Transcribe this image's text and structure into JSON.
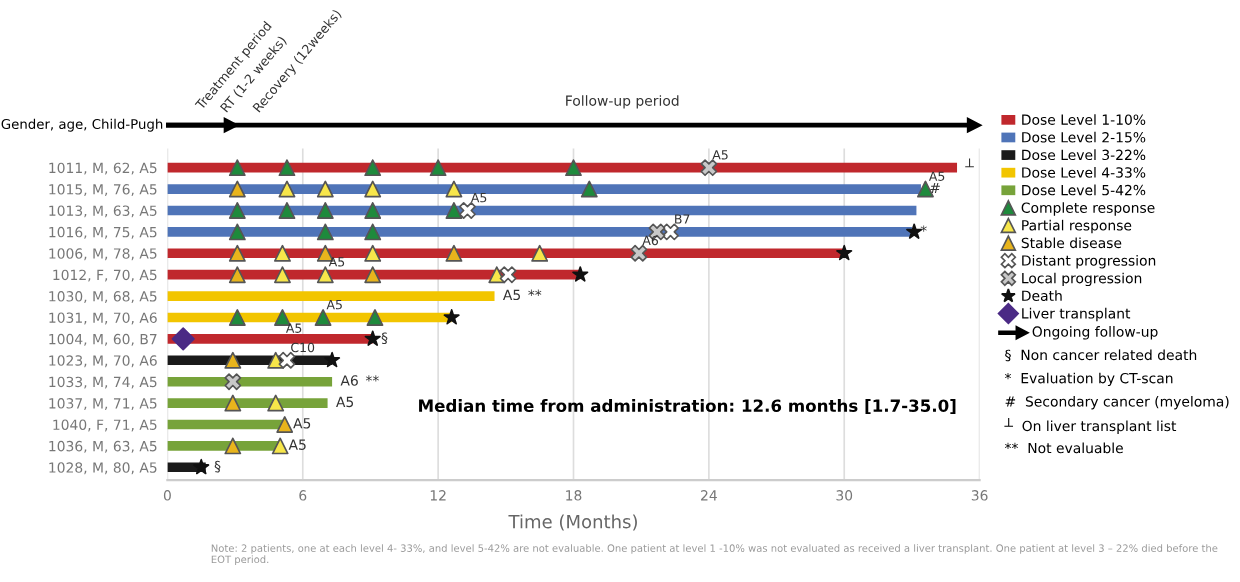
{
  "chart_data": {
    "type": "bar",
    "orientation": "horizontal",
    "xlabel": "Time (Months)",
    "categories": [
      "1011, M, 62, A5",
      "1015, M, 76, A5",
      "1013, M, 63, A5",
      "1016, M, 75, A5",
      "1006, M, 78, A5",
      "1012, F, 70, A5",
      "1030, M, 68, A5",
      "1031, M, 70, A6",
      "1004, M, 60, B7",
      "1023, M, 70, A6",
      "1033, M, 74, A5",
      "1037, M, 71, A5",
      "1040, F, 71, A5",
      "1036, M, 63, A5",
      "1028, M, 80, A5"
    ],
    "xlim": [
      0,
      36
    ],
    "xticks": [
      0,
      6,
      12,
      18,
      24,
      30,
      36
    ],
    "grid": "x",
    "legend": "right",
    "series": [
      {
        "name": "Dose Level 1-10%",
        "color": "#c0282d",
        "values": [
          35.0,
          null,
          null,
          null,
          30.0,
          18.3,
          null,
          null,
          9.1,
          null,
          null,
          null,
          null,
          null,
          null
        ]
      },
      {
        "name": "Dose Level 2-15%",
        "color": "#4f74b8",
        "values": [
          null,
          33.4,
          33.2,
          33.0,
          null,
          null,
          null,
          null,
          null,
          null,
          null,
          null,
          null,
          null,
          null
        ]
      },
      {
        "name": "Dose Level 3-22%",
        "color": "#1a1a1a",
        "values": [
          null,
          null,
          null,
          null,
          null,
          null,
          null,
          null,
          null,
          7.3,
          null,
          null,
          null,
          null,
          1.7
        ]
      },
      {
        "name": "Dose Level 4-33%",
        "color": "#f2c500",
        "values": [
          null,
          null,
          null,
          null,
          null,
          null,
          14.5,
          12.6,
          null,
          null,
          null,
          null,
          null,
          null,
          null
        ]
      },
      {
        "name": "Dose Level 5-42%",
        "color": "#77a33a",
        "values": [
          null,
          null,
          null,
          null,
          null,
          null,
          null,
          null,
          null,
          null,
          7.3,
          7.1,
          5.2,
          5.0,
          null
        ]
      },
      {
        "name": "Complete response",
        "type": "scatter",
        "marker": "triangle",
        "color": "#1e8a3c",
        "x": [
          "1011, M, 62, A5",
          "1011, M, 62, A5",
          "1011, M, 62, A5",
          "1011, M, 62, A5",
          "1011, M, 62, A5",
          "1015, M, 76, A5",
          "1015, M, 76, A5",
          "1013, M, 63, A5",
          "1013, M, 63, A5",
          "1013, M, 63, A5",
          "1013, M, 63, A5",
          "1013, M, 63, A5",
          "1016, M, 75, A5",
          "1016, M, 75, A5",
          "1016, M, 75, A5",
          "1031, M, 70, A6",
          "1031, M, 70, A6",
          "1031, M, 70, A6",
          "1031, M, 70, A6"
        ],
        "values": [
          3.1,
          5.3,
          9.1,
          12.0,
          18.0,
          18.7,
          33.6,
          3.1,
          5.3,
          7.0,
          9.1,
          12.7,
          3.1,
          7.0,
          9.1,
          3.1,
          5.1,
          6.9,
          9.2
        ]
      },
      {
        "name": "Partial response",
        "type": "scatter",
        "marker": "triangle",
        "color": "#f7e64a",
        "x": [
          "1015, M, 76, A5",
          "1015, M, 76, A5",
          "1015, M, 76, A5",
          "1015, M, 76, A5",
          "1006, M, 78, A5",
          "1006, M, 78, A5",
          "1006, M, 78, A5",
          "1012, F, 70, A5",
          "1012, F, 70, A5",
          "1012, F, 70, A5",
          "1023, M, 70, A6",
          "1037, M, 71, A5",
          "1036, M, 63, A5"
        ],
        "values": [
          5.3,
          7.0,
          9.1,
          12.7,
          5.1,
          9.1,
          16.5,
          5.1,
          7.0,
          14.6,
          4.8,
          4.8,
          5.0
        ]
      },
      {
        "name": "Stable disease",
        "type": "scatter",
        "marker": "triangle",
        "color": "#e8b41c",
        "x": [
          "1015, M, 76, A5",
          "1006, M, 78, A5",
          "1006, M, 78, A5",
          "1006, M, 78, A5",
          "1012, F, 70, A5",
          "1012, F, 70, A5",
          "1023, M, 70, A6",
          "1037, M, 71, A5",
          "1040, F, 71, A5",
          "1036, M, 63, A5"
        ],
        "values": [
          3.1,
          3.1,
          7.0,
          12.7,
          3.1,
          9.1,
          2.9,
          2.9,
          5.2,
          2.9
        ]
      },
      {
        "name": "Distant progression",
        "type": "scatter",
        "marker": "cross",
        "color": "#ffffff",
        "x": [
          "1013, M, 63, A5",
          "1016, M, 75, A5",
          "1012, F, 70, A5",
          "1023, M, 70, A6"
        ],
        "values": [
          13.3,
          22.3,
          15.1,
          5.3
        ]
      },
      {
        "name": "Local progression",
        "type": "scatter",
        "marker": "cross",
        "color": "#c8c8c8",
        "x": [
          "1011, M, 62, A5",
          "1016, M, 75, A5",
          "1006, M, 78, A5",
          "1033, M, 74, A5"
        ],
        "values": [
          24.0,
          21.7,
          20.9,
          2.9
        ]
      },
      {
        "name": "Death",
        "type": "scatter",
        "marker": "star",
        "color": "#111111",
        "x": [
          "1016, M, 75, A5",
          "1006, M, 78, A5",
          "1012, F, 70, A5",
          "1031, M, 70, A6",
          "1004, M, 60, B7",
          "1023, M, 70, A6",
          "1028, M, 80, A5"
        ],
        "values": [
          33.1,
          30.0,
          18.3,
          12.6,
          9.1,
          7.3,
          1.5
        ]
      },
      {
        "name": "Liver transplant",
        "type": "scatter",
        "marker": "diamond",
        "color": "#4b2a85",
        "x": [
          "1004, M, 60, B7"
        ],
        "values": [
          0.7
        ]
      }
    ],
    "annotations": [
      "Gender, age, Child-Pugh",
      "Treatment period",
      "RT (1-2 weeks)",
      "Recovery (12weeks)",
      "Follow-up period",
      "Median time from administration: 12.6 months [1.7-35.0]",
      "Note: 2 patients, one at each level 4- 33%, and level 5-42% are not evaluable. One patient at level 1 -10% was not evaluated as received a liver transplant. One patient at level 3 – 22% died before the EOT period.",
      "Ongoing follow-up",
      "§  Non cancer related death",
      "*  Evaluation by CT-scan",
      "#  Secondary cancer (myeloma)",
      "┴  On liver transplant list",
      "**  Not evaluable",
      {
        "text": "A5",
        "x": 24.0,
        "y": "1011, M, 62, A5"
      },
      {
        "text": "┴",
        "x": 35.0,
        "y": "1011, M, 62, A5"
      },
      {
        "text": "A5",
        "x": 33.6,
        "y": "1015, M, 76, A5"
      },
      {
        "text": "#",
        "x": 33.4,
        "y": "1015, M, 76, A5"
      },
      {
        "text": "A5",
        "x": 13.3,
        "y": "1013, M, 63, A5"
      },
      {
        "text": "B7",
        "x": 22.3,
        "y": "1016, M, 75, A5"
      },
      {
        "text": "*",
        "x": 33.0,
        "y": "1016, M, 75, A5"
      },
      {
        "text": "A6",
        "x": 20.9,
        "y": "1006, M, 78, A5"
      },
      {
        "text": "A5",
        "x": 7.0,
        "y": "1012, F, 70, A5"
      },
      {
        "text": "A5",
        "x": 14.5,
        "y": "1030, M, 68, A5"
      },
      {
        "text": "**",
        "x": 14.5,
        "y": "1030, M, 68, A5"
      },
      {
        "text": "A5",
        "x": 6.9,
        "y": "1031, M, 70, A6"
      },
      {
        "text": "A5",
        "x": 5.1,
        "y": "1031, M, 70, A6"
      },
      {
        "text": "§",
        "x": 9.1,
        "y": "1004, M, 60, B7"
      },
      {
        "text": "C10",
        "x": 5.3,
        "y": "1023, M, 70, A6"
      },
      {
        "text": "A6",
        "x": 7.3,
        "y": "1033, M, 74, A5"
      },
      {
        "text": "**",
        "x": 7.3,
        "y": "1033, M, 74, A5"
      },
      {
        "text": "A5",
        "x": 7.1,
        "y": "1037, M, 71, A5"
      },
      {
        "text": "A5",
        "x": 5.2,
        "y": "1040, F, 71, A5"
      },
      {
        "text": "A5",
        "x": 5.0,
        "y": "1036, M, 63, A5"
      },
      {
        "text": "§",
        "x": 1.7,
        "y": "1028, M, 80, A5"
      }
    ]
  }
}
